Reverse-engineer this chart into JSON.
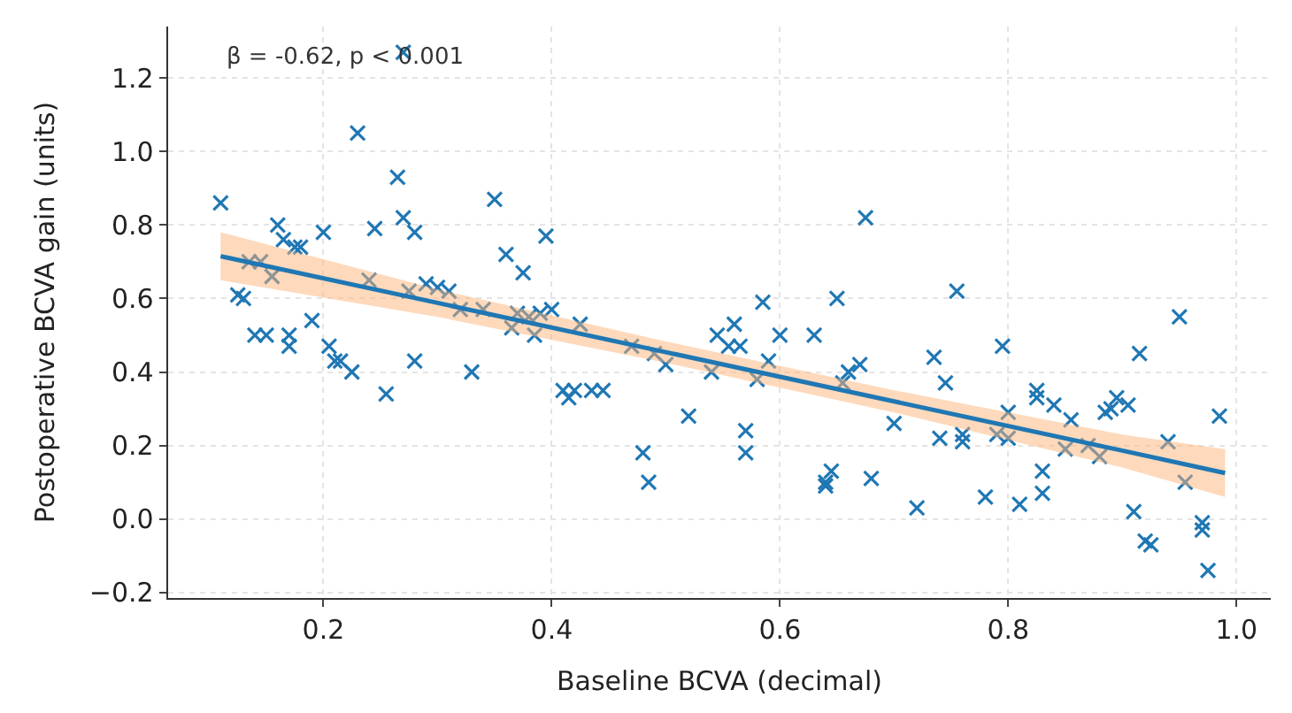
{
  "chart_data": {
    "type": "scatter",
    "xlabel": "Baseline BCVA (decimal)",
    "ylabel": "Postoperative BCVA gain (units)",
    "annotations": [
      "β = -0.62, p < 0.001"
    ],
    "xlim": [
      0.064,
      1.03
    ],
    "ylim": [
      -0.215,
      1.34
    ],
    "xticks": [
      {
        "value": 0.2,
        "label": "0.2"
      },
      {
        "value": 0.4,
        "label": "0.4"
      },
      {
        "value": 0.6,
        "label": "0.6"
      },
      {
        "value": 0.8,
        "label": "0.8"
      },
      {
        "value": 1.0,
        "label": "1.0"
      }
    ],
    "yticks": [
      {
        "value": -0.2,
        "label": "−0.2"
      },
      {
        "value": 0.0,
        "label": "0.0"
      },
      {
        "value": 0.2,
        "label": "0.2"
      },
      {
        "value": 0.4,
        "label": "0.4"
      },
      {
        "value": 0.6,
        "label": "0.6"
      },
      {
        "value": 0.8,
        "label": "0.8"
      },
      {
        "value": 1.0,
        "label": "1.0"
      },
      {
        "value": 1.2,
        "label": "1.2"
      }
    ],
    "grid": true,
    "marker": "cross",
    "series": [
      {
        "color": "#1f77b4",
        "x": [
          0.11,
          0.125,
          0.13,
          0.135,
          0.14,
          0.145,
          0.15,
          0.155,
          0.16,
          0.165,
          0.17,
          0.17,
          0.175,
          0.18,
          0.19,
          0.2,
          0.205,
          0.21,
          0.215,
          0.225,
          0.23,
          0.24,
          0.245,
          0.255,
          0.265,
          0.27,
          0.27,
          0.275,
          0.28,
          0.28,
          0.29,
          0.3,
          0.31,
          0.32,
          0.33,
          0.34,
          0.35,
          0.36,
          0.365,
          0.37,
          0.375,
          0.38,
          0.385,
          0.39,
          0.395,
          0.4,
          0.41,
          0.415,
          0.42,
          0.425,
          0.435,
          0.445,
          0.47,
          0.48,
          0.485,
          0.49,
          0.5,
          0.52,
          0.54,
          0.545,
          0.555,
          0.56,
          0.565,
          0.57,
          0.57,
          0.58,
          0.585,
          0.59,
          0.6,
          0.63,
          0.64,
          0.64,
          0.645,
          0.65,
          0.655,
          0.66,
          0.67,
          0.675,
          0.68,
          0.7,
          0.72,
          0.735,
          0.74,
          0.745,
          0.755,
          0.76,
          0.76,
          0.78,
          0.79,
          0.795,
          0.8,
          0.8,
          0.81,
          0.825,
          0.825,
          0.83,
          0.83,
          0.84,
          0.85,
          0.855,
          0.87,
          0.88,
          0.885,
          0.89,
          0.895,
          0.905,
          0.91,
          0.915,
          0.92,
          0.925,
          0.94,
          0.95,
          0.955,
          0.97,
          0.97,
          0.975,
          0.985
        ],
        "values": [
          0.86,
          0.61,
          0.6,
          0.7,
          0.5,
          0.7,
          0.5,
          0.66,
          0.8,
          0.76,
          0.5,
          0.47,
          0.74,
          0.74,
          0.54,
          0.78,
          0.47,
          0.43,
          0.43,
          0.4,
          1.05,
          0.65,
          0.79,
          0.34,
          0.93,
          0.82,
          1.27,
          0.62,
          0.43,
          0.78,
          0.64,
          0.63,
          0.62,
          0.57,
          0.4,
          0.57,
          0.87,
          0.72,
          0.52,
          0.56,
          0.67,
          0.55,
          0.5,
          0.56,
          0.77,
          0.57,
          0.35,
          0.33,
          0.35,
          0.53,
          0.35,
          0.35,
          0.47,
          0.18,
          0.1,
          0.45,
          0.42,
          0.28,
          0.4,
          0.5,
          0.47,
          0.53,
          0.47,
          0.18,
          0.24,
          0.38,
          0.59,
          0.43,
          0.5,
          0.5,
          0.1,
          0.09,
          0.13,
          0.6,
          0.37,
          0.4,
          0.42,
          0.82,
          0.11,
          0.26,
          0.03,
          0.44,
          0.22,
          0.37,
          0.62,
          0.21,
          0.23,
          0.06,
          0.23,
          0.47,
          0.22,
          0.29,
          0.04,
          0.33,
          0.35,
          0.13,
          0.07,
          0.31,
          0.19,
          0.27,
          0.2,
          0.17,
          0.29,
          0.3,
          0.33,
          0.31,
          0.02,
          0.45,
          -0.06,
          -0.07,
          0.21,
          0.55,
          0.1,
          -0.03,
          -0.01,
          -0.14,
          0.28
        ]
      },
      {
        "type": "line",
        "color": "#1f77b4",
        "marker": "none",
        "line_style": "solid",
        "x": [
          0.11,
          0.3,
          0.5,
          0.7,
          0.9,
          0.99
        ],
        "values": [
          0.715,
          0.588,
          0.454,
          0.32,
          0.186,
          0.125
        ],
        "lower": [
          0.65,
          0.55,
          0.425,
          0.29,
          0.14,
          0.06
        ],
        "upper": [
          0.78,
          0.625,
          0.483,
          0.35,
          0.23,
          0.19
        ]
      }
    ]
  }
}
